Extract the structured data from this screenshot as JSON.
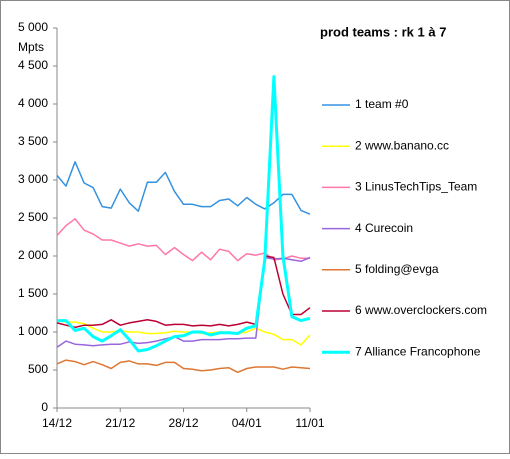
{
  "chart_data": {
    "type": "line",
    "title": "prod teams : rk 1 à 7",
    "y_label": "Mpts",
    "categories": [
      "14/12",
      null,
      null,
      null,
      null,
      null,
      null,
      "21/12",
      null,
      null,
      null,
      null,
      null,
      null,
      "28/12",
      null,
      null,
      null,
      null,
      null,
      null,
      "04/01",
      null,
      null,
      null,
      null,
      null,
      null,
      "11/01"
    ],
    "ylim": [
      0,
      5000
    ],
    "yticks": [
      0,
      500,
      {
        "value": 1000,
        "label": "1 000"
      },
      {
        "value": 1500,
        "label": "1 500"
      },
      {
        "value": 2000,
        "label": "2 000"
      },
      {
        "value": 2500,
        "label": "2 500"
      },
      {
        "value": 3000,
        "label": "3 000"
      },
      {
        "value": 3500,
        "label": "3 500"
      },
      {
        "value": 4000,
        "label": "4 000"
      },
      {
        "value": 4500,
        "label": "4 500"
      },
      {
        "value": 5000,
        "label": "5 000"
      }
    ],
    "grid": false,
    "legend": "right",
    "series": [
      {
        "name": "1 team #0",
        "color": "#3592e0",
        "width": 1.5,
        "values": [
          3060,
          2920,
          3240,
          2960,
          2900,
          2650,
          2630,
          2880,
          2700,
          2590,
          2970,
          2970,
          3100,
          2850,
          2680,
          2680,
          2650,
          2650,
          2730,
          2750,
          2660,
          2770,
          2680,
          2620,
          2700,
          2810,
          2810,
          2600,
          2550
        ]
      },
      {
        "name": "2 www.banano.cc",
        "color": "#ffff00",
        "width": 1.5,
        "values": [
          1150,
          1130,
          1130,
          1110,
          1050,
          1000,
          1000,
          1020,
          1000,
          1000,
          980,
          980,
          990,
          1010,
          1000,
          1000,
          980,
          990,
          1000,
          1000,
          980,
          1000,
          1050,
          1000,
          970,
          900,
          900,
          830,
          960
        ]
      },
      {
        "name": "3 LinusTechTips_Team",
        "color": "#ff77aa",
        "width": 1.5,
        "values": [
          2270,
          2400,
          2490,
          2340,
          2290,
          2210,
          2210,
          2170,
          2130,
          2160,
          2130,
          2140,
          2020,
          2110,
          2020,
          1940,
          2050,
          1950,
          2090,
          2060,
          1940,
          2030,
          2010,
          2040,
          1950,
          1960,
          2000,
          1970,
          1970
        ]
      },
      {
        "name": "4 Curecoin",
        "color": "#9966dd",
        "width": 1.5,
        "values": [
          800,
          880,
          840,
          830,
          820,
          830,
          840,
          840,
          870,
          850,
          860,
          880,
          910,
          940,
          880,
          880,
          900,
          900,
          900,
          910,
          910,
          920,
          920,
          1980,
          1960,
          1970,
          1950,
          1930,
          1980
        ]
      },
      {
        "name": "5 folding@evga",
        "color": "#dd7733",
        "width": 1.5,
        "values": [
          580,
          630,
          610,
          570,
          610,
          570,
          520,
          600,
          620,
          580,
          580,
          560,
          600,
          600,
          520,
          510,
          490,
          500,
          520,
          530,
          470,
          520,
          540,
          540,
          540,
          510,
          540,
          530,
          520
        ]
      },
      {
        "name": "6 www.overclockers.com",
        "color": "#bb0033",
        "width": 1.5,
        "values": [
          1120,
          1090,
          1060,
          1090,
          1090,
          1100,
          1160,
          1090,
          1120,
          1140,
          1160,
          1140,
          1090,
          1100,
          1100,
          1080,
          1090,
          1080,
          1100,
          1080,
          1100,
          1130,
          1100,
          2000,
          1980,
          1500,
          1230,
          1230,
          1320
        ]
      },
      {
        "name": "7 Alliance Francophone",
        "color": "#00ffff",
        "width": 3,
        "values": [
          1150,
          1150,
          1020,
          1050,
          940,
          880,
          950,
          1030,
          900,
          750,
          770,
          820,
          880,
          940,
          950,
          1000,
          1000,
          960,
          990,
          990,
          980,
          1050,
          1080,
          1950,
          4360,
          2000,
          1200,
          1150,
          1180
        ]
      }
    ]
  }
}
